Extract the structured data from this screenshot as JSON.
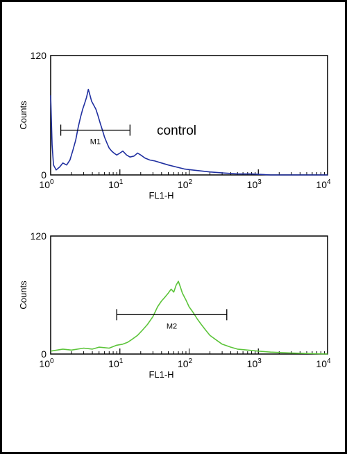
{
  "colors": {
    "control": "#1f2fa0",
    "sample": "#5cc43a",
    "axis": "#000000"
  },
  "chart_data": [
    {
      "type": "line",
      "xscale": "log",
      "xlim": [
        1,
        10000
      ],
      "ylim": [
        0,
        120
      ],
      "xticks": [
        {
          "base": "10",
          "exp": "0"
        },
        {
          "base": "10",
          "exp": "1"
        },
        {
          "base": "10",
          "exp": "2"
        },
        {
          "base": "10",
          "exp": "3"
        },
        {
          "base": "10",
          "exp": "4"
        }
      ],
      "yticks": [
        "0",
        "120"
      ],
      "xlabel": "FL1-H",
      "ylabel": "Counts",
      "annotation": "control",
      "color": "#1f2fa0",
      "marker": {
        "label": "M1",
        "x_start": 1.4,
        "x_end": 14,
        "y": 45
      },
      "series": [
        {
          "x": [
            1.0,
            1.05,
            1.1,
            1.2,
            1.35,
            1.5,
            1.7,
            1.9,
            2.1,
            2.3,
            2.5,
            2.7,
            2.9,
            3.1,
            3.3,
            3.5,
            3.7,
            3.9,
            4.2,
            4.5,
            4.8,
            5.2,
            5.6,
            6.0,
            6.5,
            7.0,
            7.6,
            8.2,
            9.0,
            10.0,
            11.0,
            12.5,
            14.0,
            16.0,
            18.0,
            20.0,
            23.0,
            27.0,
            32.0,
            40.0,
            50.0,
            65.0,
            85.0,
            110.0,
            150.0,
            200.0,
            300.0,
            500.0,
            800.0,
            1500.0,
            3000.0,
            10000.0
          ],
          "y": [
            80,
            30,
            10,
            5,
            8,
            12,
            10,
            15,
            25,
            35,
            48,
            58,
            66,
            72,
            78,
            86,
            80,
            74,
            70,
            66,
            60,
            52,
            45,
            38,
            32,
            27,
            24,
            22,
            20,
            22,
            24,
            20,
            18,
            19,
            22,
            20,
            17,
            15,
            14,
            12,
            10,
            8,
            6,
            5,
            4,
            3,
            2,
            1,
            1,
            0,
            0,
            0
          ]
        }
      ]
    },
    {
      "type": "line",
      "xscale": "log",
      "xlim": [
        1,
        10000
      ],
      "ylim": [
        0,
        120
      ],
      "xticks": [
        {
          "base": "10",
          "exp": "0"
        },
        {
          "base": "10",
          "exp": "1"
        },
        {
          "base": "10",
          "exp": "2"
        },
        {
          "base": "10",
          "exp": "3"
        },
        {
          "base": "10",
          "exp": "4"
        }
      ],
      "yticks": [
        "0",
        "120"
      ],
      "xlabel": "FL1-H",
      "ylabel": "Counts",
      "color": "#5cc43a",
      "marker": {
        "label": "M2",
        "x_start": 9,
        "x_end": 350,
        "y": 40
      },
      "series": [
        {
          "x": [
            1.0,
            1.5,
            2.0,
            3.0,
            4.0,
            5.0,
            7.0,
            9.0,
            11.0,
            13.0,
            15.0,
            18.0,
            21.0,
            25.0,
            30.0,
            35.0,
            40.0,
            45.0,
            50.0,
            55.0,
            60.0,
            65.0,
            70.0,
            75.0,
            80.0,
            90.0,
            100.0,
            115.0,
            130.0,
            150.0,
            175.0,
            200.0,
            250.0,
            300.0,
            400.0,
            500.0,
            700.0,
            1000.0,
            1500.0,
            3000.0,
            10000.0
          ],
          "y": [
            3,
            5,
            4,
            6,
            5,
            7,
            6,
            9,
            10,
            12,
            15,
            19,
            24,
            30,
            38,
            48,
            54,
            58,
            62,
            66,
            63,
            70,
            74,
            68,
            62,
            55,
            48,
            42,
            36,
            30,
            24,
            19,
            14,
            10,
            7,
            5,
            4,
            3,
            2,
            1,
            0
          ]
        }
      ]
    }
  ]
}
